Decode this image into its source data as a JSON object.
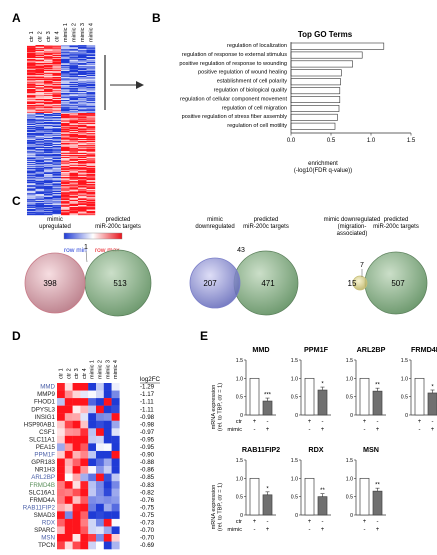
{
  "panel_labels": {
    "A": "A",
    "B": "B",
    "C": "C",
    "D": "D",
    "E": "E"
  },
  "panelA": {
    "columns": [
      "ctr 1",
      "ctr 2",
      "ctr 3",
      "ctr 4",
      "mimic 1",
      "mimic 2",
      "mimic 3",
      "mimic 4"
    ],
    "legend_min": "row min",
    "legend_max": "row max"
  },
  "panelB": {
    "title": "Top GO Terms",
    "xlabel_line1": "enrichment",
    "xlabel_line2": "(-log10(FDR q-value))"
  },
  "chart_data": [
    {
      "type": "bar",
      "title": "Top GO Terms",
      "orientation": "horizontal",
      "categories": [
        "regulation of localization",
        "regulation of response to external stimulus",
        "positive regulation of response to wounding",
        "positive regulation of wound healing",
        "establishment of cell polarity",
        "regulation of biological quality",
        "regulation of cellular component movement",
        "regulation of cell migration",
        "positive regulation of stress fiber assembly",
        "regulation of cell motility"
      ],
      "values": [
        1.16,
        0.89,
        0.77,
        0.63,
        0.62,
        0.61,
        0.61,
        0.6,
        0.58,
        0.55
      ],
      "xlabel": "enrichment (-log10(FDR q-value))",
      "xlim": [
        0,
        1.5
      ],
      "xticks": [
        "0.0",
        "0.5",
        "1.0",
        "1.5"
      ]
    },
    {
      "type": "bar",
      "title": "MMD",
      "ylabel": "mRNA expression (rel. to TBP, ctr = 1)",
      "categories": [
        "ctr",
        "mimic"
      ],
      "values": [
        1.0,
        0.38
      ],
      "significance": "***",
      "ylim": [
        0,
        1.5
      ],
      "yticks": [
        "0",
        "0.5",
        "1.0",
        "1.5"
      ]
    },
    {
      "type": "bar",
      "title": "PPM1F",
      "ylabel": "mRNA expression (rel. to TBP, ctr = 1)",
      "categories": [
        "ctr",
        "mimic"
      ],
      "values": [
        1.0,
        0.68
      ],
      "significance": "*",
      "ylim": [
        0,
        1.5
      ],
      "yticks": [
        "0",
        "0.5",
        "1.0",
        "1.5"
      ]
    },
    {
      "type": "bar",
      "title": "ARL2BP",
      "ylabel": "mRNA expression (rel. to TBP, ctr = 1)",
      "categories": [
        "ctr",
        "mimic"
      ],
      "values": [
        1.0,
        0.65
      ],
      "significance": "**",
      "ylim": [
        0,
        1.5
      ],
      "yticks": [
        "0",
        "0.5",
        "1.0",
        "1.5"
      ]
    },
    {
      "type": "bar",
      "title": "FRMD4B",
      "ylabel": "mRNA expression (rel. to TBP, ctr = 1)",
      "categories": [
        "ctr",
        "mimic"
      ],
      "values": [
        1.0,
        0.6
      ],
      "significance": "*",
      "ylim": [
        0,
        1.5
      ],
      "yticks": [
        "0",
        "0.5",
        "1.0",
        "1.5"
      ]
    },
    {
      "type": "bar",
      "title": "RAB11FIP2",
      "ylabel": "mRNA expression (rel. to TBP, ctr = 1)",
      "categories": [
        "ctr",
        "mimic"
      ],
      "values": [
        1.0,
        0.55
      ],
      "significance": "*",
      "ylim": [
        0,
        1.5
      ],
      "yticks": [
        "0",
        "0.5",
        "1.0",
        "1.5"
      ]
    },
    {
      "type": "bar",
      "title": "RDX",
      "ylabel": "mRNA expression (rel. to TBP, ctr = 1)",
      "categories": [
        "ctr",
        "mimic"
      ],
      "values": [
        1.0,
        0.5
      ],
      "significance": "**",
      "ylim": [
        0,
        1.5
      ],
      "yticks": [
        "0",
        "0.5",
        "1.0",
        "1.5"
      ]
    },
    {
      "type": "bar",
      "title": "MSN",
      "ylabel": "mRNA expression (rel. to TBP, ctr = 1)",
      "categories": [
        "ctr",
        "mimic"
      ],
      "values": [
        1.0,
        0.65
      ],
      "significance": "**",
      "ylim": [
        0,
        1.5
      ],
      "yticks": [
        "0",
        "0.5",
        "1.0",
        "1.5"
      ]
    }
  ],
  "panelC": {
    "venns": [
      {
        "left_label_1": "mimic",
        "left_label_2": "upregulated",
        "left_label_3": "",
        "right_label_1": "predicted",
        "right_label_2": "miR-200c targets",
        "left_only": "398",
        "overlap": "1",
        "right_only": "513",
        "left_color": "#c97b88"
      },
      {
        "left_label_1": "mimic",
        "left_label_2": "downregulated",
        "left_label_3": "",
        "right_label_1": "predicted",
        "right_label_2": "miR-200c targets",
        "left_only": "207",
        "overlap": "43",
        "right_only": "471",
        "left_color": "#7b7fc9"
      },
      {
        "left_label_1": "mimic downregulated",
        "left_label_2": "(migration-",
        "left_label_3": "associated)",
        "right_label_1": "predicted",
        "right_label_2": "miR-200c targets",
        "left_only": "15",
        "overlap": "7",
        "right_only": "507",
        "left_color": "#c9c07b"
      }
    ]
  },
  "panelD": {
    "log2fc_header": "log2FC",
    "columns": [
      "ctr 1",
      "ctr 2",
      "ctr 3",
      "ctr 4",
      "mimic 1",
      "mimic 2",
      "mimic 3",
      "mimic 4"
    ],
    "genes": [
      {
        "name": "MMD",
        "fc": "-1.29",
        "color": "#4a5fa8"
      },
      {
        "name": "MMP9",
        "fc": "-1.17",
        "color": "#222222"
      },
      {
        "name": "FHOD1",
        "fc": "-1.11",
        "color": "#222222"
      },
      {
        "name": "DPYSL3",
        "fc": "-1.11",
        "color": "#222222"
      },
      {
        "name": "INSIG1",
        "fc": "-0.98",
        "color": "#222222"
      },
      {
        "name": "HSP90AB1",
        "fc": "-0.98",
        "color": "#222222"
      },
      {
        "name": "CSF1",
        "fc": "-0.97",
        "color": "#222222"
      },
      {
        "name": "SLC11A1",
        "fc": "-0.95",
        "color": "#222222"
      },
      {
        "name": "PEA15",
        "fc": "-0.95",
        "color": "#222222"
      },
      {
        "name": "PPM1F",
        "fc": "-0.90",
        "color": "#4a5fa8"
      },
      {
        "name": "GPR183",
        "fc": "-0.88",
        "color": "#222222"
      },
      {
        "name": "NR1H3",
        "fc": "-0.86",
        "color": "#222222"
      },
      {
        "name": "ARL2BP",
        "fc": "-0.85",
        "color": "#4a5fa8"
      },
      {
        "name": "FRMD4B",
        "fc": "-0.83",
        "color": "#5a8f5a"
      },
      {
        "name": "SLC16A1",
        "fc": "-0.82",
        "color": "#222222"
      },
      {
        "name": "FRMD4A",
        "fc": "-0.76",
        "color": "#222222"
      },
      {
        "name": "RAB11FIP2",
        "fc": "-0.75",
        "color": "#4a5fa8"
      },
      {
        "name": "SMAD3",
        "fc": "-0.75",
        "color": "#222222"
      },
      {
        "name": "RDX",
        "fc": "-0.73",
        "color": "#4a5fa8"
      },
      {
        "name": "SPARC",
        "fc": "-0.70",
        "color": "#222222"
      },
      {
        "name": "MSN",
        "fc": "-0.70",
        "color": "#4a5fa8"
      },
      {
        "name": "TPCN",
        "fc": "-0.69",
        "color": "#222222"
      }
    ]
  },
  "panelE": {
    "ylabel_line1": "mRNA expression",
    "ylabel_line2": "(rel. to TBP, ctr = 1)",
    "row_ctr": "ctr",
    "row_mimic": "mimic",
    "ctr_signs": [
      "+",
      "-"
    ],
    "mimic_signs": [
      "-",
      "+"
    ]
  },
  "colors": {
    "heat_red": "#e8141c",
    "heat_blue": "#1f3bd6",
    "venn_green": "#6f9a6f",
    "bar_outline": "#444444",
    "mimic_bar": "#707070"
  }
}
